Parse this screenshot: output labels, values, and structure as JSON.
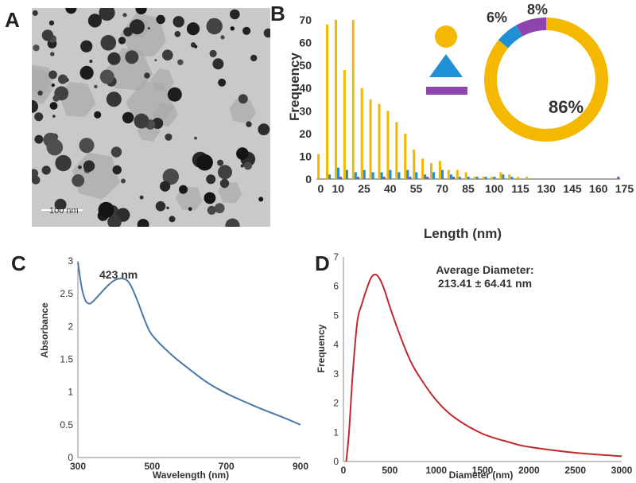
{
  "panels": {
    "a": "A",
    "b": "B",
    "c": "C",
    "d": "D"
  },
  "tem": {
    "scale_label": "100 nm"
  },
  "colors": {
    "sphere": "#f5b800",
    "triangle": "#1f8fd6",
    "rod": "#8e44ad",
    "uv": "#4a79a8",
    "dls": "#c0292b"
  },
  "chart_data": [
    {
      "type": "bar",
      "title": "",
      "xlabel": "Length (nm)",
      "ylabel": "Frequency",
      "ylim": [
        0,
        70
      ],
      "yticks": [
        0,
        10,
        20,
        30,
        40,
        50,
        60,
        70
      ],
      "xticks": [
        "0",
        "10",
        "25",
        "40",
        "55",
        "70",
        "85",
        "100",
        "115",
        "130",
        "145",
        "160",
        "175"
      ],
      "bin_width": 5,
      "bin_start": 0,
      "series": [
        {
          "name": "sphere",
          "values": [
            11,
            68,
            70,
            48,
            70,
            40,
            35,
            33,
            30,
            25,
            20,
            13,
            9,
            7,
            8,
            4,
            4,
            3,
            1,
            1,
            1,
            3,
            2,
            1,
            1,
            0,
            0,
            0,
            0,
            0,
            0,
            0,
            0,
            0,
            0
          ]
        },
        {
          "name": "triangle",
          "values": [
            0,
            2,
            5,
            4,
            3,
            4,
            3,
            3,
            4,
            3,
            4,
            3,
            2,
            3,
            4,
            2,
            1,
            1,
            1,
            1,
            1,
            2,
            1,
            0,
            0,
            0,
            0,
            0,
            0,
            0,
            0,
            0,
            0,
            0,
            0
          ]
        },
        {
          "name": "rod",
          "values": [
            0,
            0,
            1,
            0,
            1,
            0,
            0,
            1,
            0,
            0,
            1,
            0,
            1,
            0,
            0,
            1,
            0,
            0,
            0,
            0,
            0,
            0,
            0,
            0,
            0,
            0,
            0,
            0,
            0,
            0,
            0,
            0,
            0,
            0,
            1
          ]
        }
      ]
    },
    {
      "type": "pie",
      "labels": [
        "sphere",
        "triangle",
        "rod"
      ],
      "values": [
        86,
        6,
        8
      ],
      "value_labels": [
        "86%",
        "6%",
        "8%"
      ]
    },
    {
      "type": "line",
      "xlabel": "Wavelength (nm)",
      "ylabel": "Absorbance",
      "xlim": [
        300,
        900
      ],
      "ylim": [
        0,
        3
      ],
      "xticks": [
        "300",
        "500",
        "700",
        "900"
      ],
      "yticks": [
        "0",
        "0.5",
        "1",
        "1.5",
        "2",
        "2.5",
        "3"
      ],
      "annotation": "423 nm",
      "x": [
        300,
        310,
        320,
        330,
        340,
        360,
        380,
        400,
        423,
        440,
        460,
        480,
        500,
        550,
        600,
        650,
        700,
        750,
        800,
        850,
        900
      ],
      "y": [
        2.98,
        2.6,
        2.4,
        2.35,
        2.38,
        2.5,
        2.62,
        2.71,
        2.73,
        2.65,
        2.4,
        2.1,
        1.87,
        1.58,
        1.35,
        1.14,
        0.98,
        0.85,
        0.73,
        0.62,
        0.5
      ]
    },
    {
      "type": "line",
      "xlabel": "Diameter (nm)",
      "ylabel": "Frequency",
      "xlim": [
        0,
        3000
      ],
      "ylim": [
        0,
        7
      ],
      "xticks": [
        "0",
        "500",
        "1000",
        "1500",
        "2000",
        "2500",
        "3000"
      ],
      "yticks": [
        "0",
        "1",
        "2",
        "3",
        "4",
        "5",
        "6",
        "7"
      ],
      "annotation_line1": "Average Diameter:",
      "annotation_line2": "213.41 ± 64.41 nm",
      "x": [
        30,
        60,
        100,
        150,
        200,
        250,
        300,
        350,
        400,
        450,
        500,
        600,
        700,
        800,
        1000,
        1200,
        1500,
        1800,
        2000,
        2500,
        3000
      ],
      "y": [
        0,
        1.0,
        3.0,
        4.8,
        5.4,
        5.9,
        6.3,
        6.4,
        6.2,
        5.8,
        5.3,
        4.4,
        3.6,
        3.0,
        2.1,
        1.5,
        0.95,
        0.65,
        0.5,
        0.3,
        0.18
      ]
    }
  ]
}
